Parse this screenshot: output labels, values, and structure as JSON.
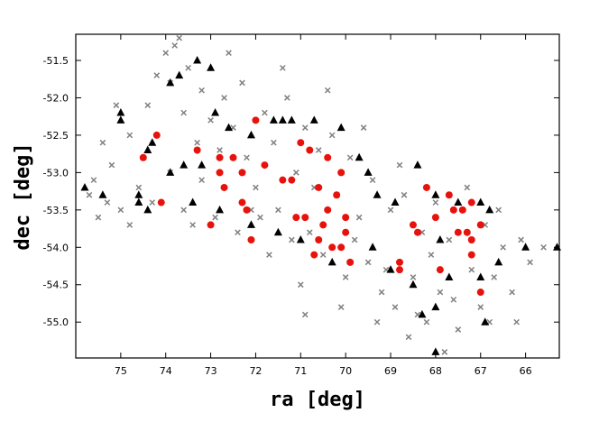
{
  "chart_data": {
    "type": "scatter",
    "xlabel": "ra [deg]",
    "ylabel": "dec [deg]",
    "xlim": [
      76,
      65.25
    ],
    "ylim": [
      -55.48,
      -51.15
    ],
    "xticks": [
      75,
      74,
      73,
      72,
      71,
      70,
      69,
      68,
      67,
      66
    ],
    "yticks": [
      -51.5,
      {
        "value": -52,
        "label": "-52.0"
      },
      -52.5,
      {
        "value": -53,
        "label": "-53.0"
      },
      -53.5,
      {
        "value": -54,
        "label": "-54.0"
      },
      -54.5,
      {
        "value": -55,
        "label": "-55.0"
      }
    ],
    "series": [
      {
        "marker": "x",
        "color": "#808080",
        "x": [
          75.7,
          75.5,
          75.3,
          75.6,
          75.2,
          75.0,
          74.8,
          74.6,
          74.4,
          74.2,
          74.0,
          73.8,
          73.9,
          73.6,
          73.5,
          73.3,
          73.2,
          73.0,
          73.9,
          74.3,
          73.6,
          73.2,
          72.9,
          72.7,
          72.5,
          72.3,
          72.2,
          72.0,
          71.8,
          71.6,
          71.5,
          71.3,
          71.1,
          70.9,
          70.8,
          70.6,
          70.5,
          70.3,
          70.2,
          70.0,
          69.9,
          69.7,
          69.5,
          69.4,
          69.2,
          69.0,
          68.9,
          68.7,
          68.5,
          68.3,
          68.2,
          68.0,
          67.9,
          67.7,
          67.5,
          67.4,
          67.2,
          67.0,
          66.9,
          66.7,
          66.5,
          66.3,
          66.1,
          65.9,
          65.6,
          66.8,
          67.6,
          68.6,
          69.3,
          70.1,
          71.0,
          71.7,
          72.4,
          73.4,
          74.8,
          74.5,
          72.8,
          71.9,
          70.7,
          69.8,
          68.8,
          68.1,
          67.3,
          66.6,
          69.6,
          70.4,
          71.4,
          72.6,
          73.7,
          75.4,
          75.1,
          66.2,
          67.8,
          68.4,
          69.1,
          70.9,
          71.2,
          72.1
        ],
        "y": [
          -53.3,
          -53.6,
          -53.4,
          -53.1,
          -52.9,
          -53.5,
          -52.5,
          -53.2,
          -52.1,
          -51.7,
          -51.4,
          -51.3,
          -51.8,
          -52.2,
          -51.6,
          -52.6,
          -51.9,
          -52.3,
          -53.0,
          -53.4,
          -53.5,
          -53.1,
          -53.6,
          -52.0,
          -52.4,
          -51.8,
          -52.8,
          -53.2,
          -52.2,
          -52.6,
          -53.5,
          -52.0,
          -53.0,
          -52.4,
          -53.8,
          -52.7,
          -54.1,
          -52.5,
          -53.3,
          -54.4,
          -52.8,
          -53.6,
          -54.2,
          -53.1,
          -54.6,
          -53.5,
          -54.8,
          -53.3,
          -54.4,
          -53.8,
          -55.0,
          -53.4,
          -54.6,
          -53.9,
          -55.1,
          -53.5,
          -54.3,
          -54.8,
          -53.7,
          -54.4,
          -54.0,
          -54.6,
          -53.9,
          -54.2,
          -54.0,
          -55.0,
          -54.7,
          -55.2,
          -55.0,
          -54.8,
          -54.5,
          -54.1,
          -53.8,
          -53.7,
          -53.7,
          -52.8,
          -52.7,
          -53.6,
          -53.2,
          -53.9,
          -52.9,
          -54.1,
          -53.2,
          -53.5,
          -52.4,
          -51.9,
          -51.6,
          -51.4,
          -51.2,
          -52.6,
          -52.1,
          -55.0,
          -55.4,
          -54.9,
          -54.3,
          -54.9,
          -53.9,
          -53.5
        ]
      },
      {
        "marker": "triangle",
        "color": "#000000",
        "x": [
          75.8,
          75.4,
          75.0,
          75.0,
          74.6,
          74.4,
          74.3,
          74.4,
          74.6,
          73.9,
          73.7,
          73.3,
          73.0,
          72.9,
          72.6,
          72.1,
          71.6,
          71.4,
          71.2,
          70.7,
          70.1,
          69.7,
          69.5,
          69.3,
          68.9,
          68.4,
          68.0,
          67.5,
          67.0,
          66.8,
          66.0,
          65.3,
          73.6,
          73.2,
          72.8,
          72.1,
          71.5,
          71.0,
          70.3,
          69.4,
          69.0,
          68.5,
          68.0,
          67.7,
          67.0,
          66.9,
          68.3,
          68.0,
          66.6,
          67.9,
          73.9,
          73.4
        ],
        "y": [
          -53.2,
          -53.3,
          -52.2,
          -52.3,
          -53.3,
          -52.7,
          -52.6,
          -53.5,
          -53.4,
          -51.8,
          -51.7,
          -51.5,
          -51.6,
          -52.2,
          -52.4,
          -52.5,
          -52.3,
          -52.3,
          -52.3,
          -52.3,
          -52.4,
          -52.8,
          -53.0,
          -53.3,
          -53.4,
          -52.9,
          -53.3,
          -53.4,
          -53.4,
          -53.5,
          -54.0,
          -54.0,
          -52.9,
          -52.9,
          -53.5,
          -53.7,
          -53.8,
          -53.9,
          -54.2,
          -54.0,
          -54.3,
          -54.5,
          -54.8,
          -54.4,
          -54.4,
          -55.0,
          -54.9,
          -55.4,
          -54.2,
          -53.9,
          -53.0,
          -53.4
        ]
      },
      {
        "marker": "circle",
        "color": "#e8120c",
        "x": [
          74.2,
          74.5,
          74.1,
          73.3,
          73.0,
          72.8,
          72.8,
          72.7,
          72.5,
          72.3,
          72.0,
          72.3,
          72.2,
          72.1,
          71.8,
          71.4,
          71.2,
          71.0,
          70.8,
          70.6,
          70.4,
          70.1,
          70.2,
          70.4,
          70.0,
          70.0,
          70.1,
          70.6,
          70.7,
          70.9,
          71.1,
          70.5,
          70.3,
          69.9,
          68.8,
          68.8,
          68.4,
          68.5,
          68.2,
          68.0,
          67.9,
          67.7,
          67.6,
          67.4,
          67.3,
          67.2,
          67.2,
          67.0,
          67.0,
          67.5,
          67.2
        ],
        "y": [
          -52.5,
          -52.8,
          -53.4,
          -52.7,
          -53.7,
          -52.8,
          -53.0,
          -53.2,
          -52.8,
          -53.0,
          -52.3,
          -53.4,
          -53.5,
          -53.9,
          -52.9,
          -53.1,
          -53.1,
          -52.6,
          -52.7,
          -53.2,
          -52.8,
          -53.0,
          -53.3,
          -53.5,
          -53.6,
          -53.8,
          -54.0,
          -53.9,
          -54.1,
          -53.6,
          -53.6,
          -53.7,
          -54.0,
          -54.2,
          -54.2,
          -54.3,
          -53.8,
          -53.7,
          -53.2,
          -53.6,
          -54.3,
          -53.3,
          -53.5,
          -53.5,
          -53.8,
          -53.4,
          -54.1,
          -53.7,
          -54.6,
          -53.8,
          -53.9
        ]
      }
    ]
  }
}
